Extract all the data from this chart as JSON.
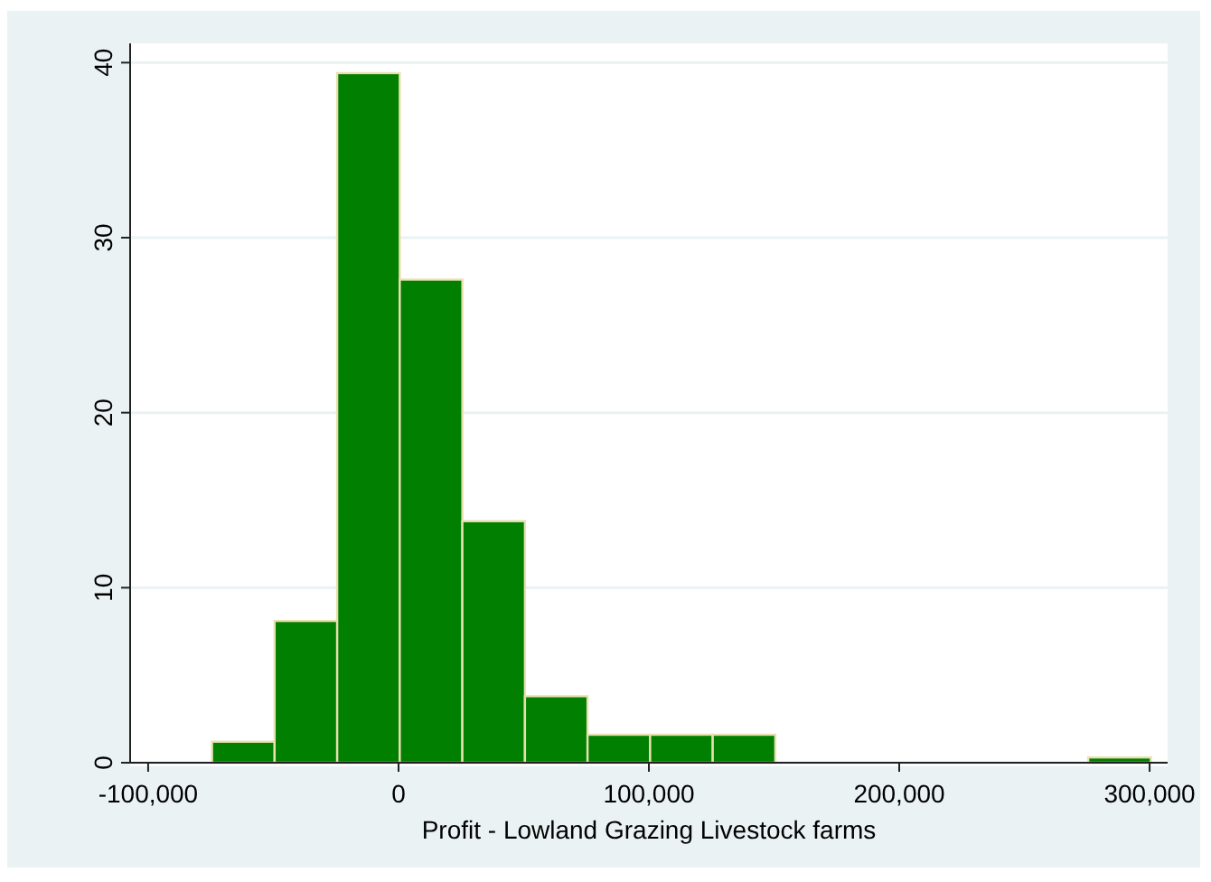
{
  "chart_data": {
    "type": "histogram",
    "xlabel": "Profit - Lowland Grazing Livestock farms",
    "bins": [
      -74500,
      -49500,
      -24500,
      500,
      25500,
      50500,
      75500,
      100500,
      125500,
      150500,
      175500,
      200500,
      225500,
      250500,
      275500,
      300500
    ],
    "values": [
      1.2,
      8.1,
      39.4,
      27.6,
      13.8,
      3.8,
      1.6,
      1.6,
      1.6,
      0,
      0,
      0,
      0,
      0,
      0.3
    ],
    "color": "#007f00",
    "xlim": [
      -107200,
      307200
    ],
    "ylim": [
      0,
      41.1
    ],
    "xticks": [
      {
        "value": -100000,
        "label": "-100,000"
      },
      0,
      {
        "value": 100000,
        "label": "100,000"
      },
      {
        "value": 200000,
        "label": "200,000"
      },
      {
        "value": 300000,
        "label": "300,000"
      }
    ],
    "yticks": [
      0,
      10,
      20,
      30,
      40
    ],
    "grid": "y"
  }
}
